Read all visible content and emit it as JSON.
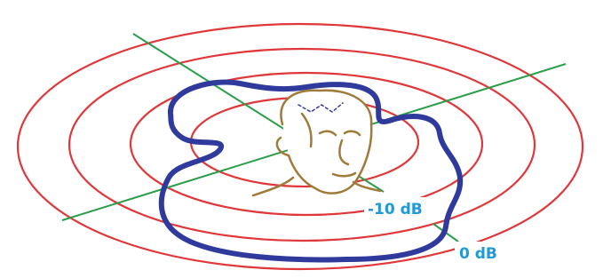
{
  "labels": {
    "inner": "-10 dB",
    "outer": "0 dB"
  }
}
